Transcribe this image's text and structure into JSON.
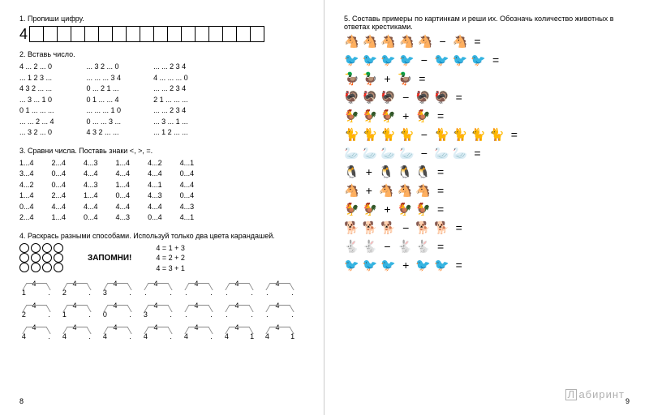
{
  "t1": "1. Пропиши цифру.",
  "big4": "4",
  "t2": "2. Вставь число.",
  "c2": {
    "a": "4 ... 2 ... 0\n... 1 2 3 ...\n4 3 2 ... ...\n... 3 ... 1 0\n0 1 ... ... ...\n... ... 2 ... 4\n... 3 2 ... 0",
    "b": "... 3 2 ... 0\n... ... ... 3 4\n0 ... 2 1 ...\n0 1 ... ... 4\n... ... ... 1 0\n0 ... ... 3 ...\n4 3 2 ... ...",
    "c": "... ... 2 3 4\n4 ... ... ... 0\n... ... 2 3 4\n2 1 ... ... ...\n... ... 2 3 4\n... 3 ... 1 ...\n... 1 2 ... ..."
  },
  "t3": "3. Сравни числа. Поставь знаки <, >, =.",
  "c3": {
    "a": "1...4\n3...4\n4...2\n1...4\n0...4\n2...4",
    "b": "2...4\n0...4\n0...4\n2...4\n4...4\n1...4",
    "c": "4...3\n4...4\n4...3\n1...4\n4...4\n0...4",
    "d": "1...4\n4...4\n1...4\n0...4\n4...4\n4...3",
    "e": "4...2\n4...4\n4...1\n4...3\n4...4\n0...4",
    "f": "4...1\n0...4\n4...4\n0...4\n4...3\n4...1"
  },
  "t4": "4. Раскрась разными способами. Используй только два цвета карандашей.",
  "zap": "ЗАПОМНИ!",
  "facts": "4 = 1 + 3\n4 = 2 + 2\n4 = 3 + 1",
  "nums": [
    "4",
    "4",
    "4",
    "4",
    "4",
    "4",
    "4"
  ],
  "pairs1": [
    [
      "1",
      "."
    ],
    [
      "2",
      "."
    ],
    [
      "3",
      "."
    ],
    [
      ".",
      "."
    ],
    [
      ".",
      "."
    ],
    [
      ".",
      "."
    ],
    [
      ".",
      "."
    ]
  ],
  "pairs2": [
    [
      "2",
      "."
    ],
    [
      "1",
      "."
    ],
    [
      "0",
      "."
    ],
    [
      "3",
      "."
    ],
    [
      ".",
      "."
    ],
    [
      ".",
      "."
    ],
    [
      ".",
      "."
    ]
  ],
  "pairs3": [
    [
      "4",
      "."
    ],
    [
      "4",
      "."
    ],
    [
      "4",
      "."
    ],
    [
      "4",
      "."
    ],
    [
      "4",
      "."
    ],
    [
      "4",
      "1"
    ],
    [
      "4",
      "1"
    ]
  ],
  "pg8": "8",
  "pg9": "9",
  "t5": "5. Составь примеры по картинкам и реши их. Обозначь количество животных в ответах крестиками.",
  "rows": [
    {
      "a": 5,
      "op": "−",
      "b": 1,
      "g": "🐴"
    },
    {
      "a": 4,
      "op": "−",
      "b": 3,
      "g": "🐦"
    },
    {
      "a": 2,
      "op": "+",
      "b": 1,
      "g": "🦆"
    },
    {
      "a": 3,
      "op": "−",
      "b": 2,
      "g": "🦃"
    },
    {
      "a": 3,
      "op": "+",
      "b": 1,
      "g": "🐓"
    },
    {
      "a": 4,
      "op": "−",
      "b": 4,
      "g": "🐈"
    },
    {
      "a": 4,
      "op": "−",
      "b": 2,
      "g": "🦢"
    },
    {
      "a": 1,
      "op": "+",
      "b": 3,
      "g": "🐧"
    },
    {
      "a": 1,
      "op": "+",
      "b": 3,
      "g": "🐴"
    },
    {
      "a": 2,
      "op": "+",
      "b": 2,
      "g": "🐓"
    },
    {
      "a": 3,
      "op": "−",
      "b": 2,
      "g": "🐕"
    },
    {
      "a": 2,
      "op": "−",
      "b": 2,
      "g": "🐇"
    },
    {
      "a": 3,
      "op": "+",
      "b": 2,
      "g": "🐦"
    }
  ],
  "wm": "абиринт"
}
